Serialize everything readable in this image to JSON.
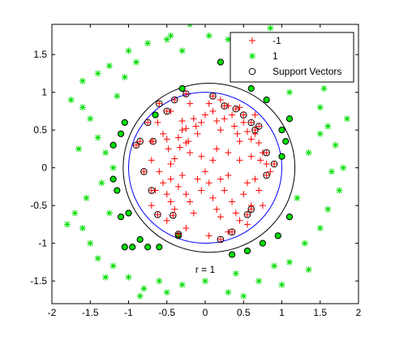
{
  "chart_data": {
    "type": "scatter",
    "title": "",
    "xlabel": "",
    "ylabel": "",
    "xlim": [
      -2,
      2.0
    ],
    "ylim": [
      -1.8,
      1.9
    ],
    "xticks": [
      "-2",
      "-1.5",
      "-1",
      "-0.5",
      "0",
      "0.5",
      "1",
      "1.5",
      "2"
    ],
    "xtick_values": [
      -2,
      -1.5,
      -1,
      -0.5,
      0,
      0.5,
      1,
      1.5,
      2
    ],
    "yticks": [
      "-1.5",
      "-1",
      "-0.5",
      "0",
      "0.5",
      "1",
      "1.5"
    ],
    "ytick_values": [
      -1.5,
      -1,
      -0.5,
      0,
      0.5,
      1,
      1.5
    ],
    "grid": false,
    "legend_position": "top-right",
    "legend": [
      "-1",
      "1",
      "Support Vectors"
    ],
    "annotation": "r = 1",
    "annotation_pos": [
      0.0,
      -1.35
    ],
    "colors": {
      "neg": "#ff0000",
      "pos": "#00dd00",
      "sv": "#000000",
      "circle": "#0000ff",
      "ellipse": "#000000"
    },
    "circle": {
      "center": [
        0,
        0
      ],
      "radius": 1.0
    },
    "boundary": {
      "cx": 0.05,
      "cy": 0.0,
      "rx": 1.12,
      "ry": 1.12
    },
    "series": [
      {
        "name": "-1",
        "marker": "plus",
        "points": [
          [
            -0.55,
            0.45
          ],
          [
            -0.5,
            0.38
          ],
          [
            -0.48,
            0.25
          ],
          [
            -0.45,
            0.05
          ],
          [
            -0.3,
            0.62
          ],
          [
            -0.3,
            0.5
          ],
          [
            -0.35,
            0.4
          ],
          [
            -0.33,
            0.27
          ],
          [
            -0.25,
            0.52
          ],
          [
            -0.2,
            0.2
          ],
          [
            -0.15,
            0.65
          ],
          [
            -0.12,
            0.55
          ],
          [
            -0.1,
            0.45
          ],
          [
            -0.05,
            0.6
          ],
          [
            0.0,
            0.7
          ],
          [
            0.05,
            0.85
          ],
          [
            0.1,
            0.75
          ],
          [
            0.15,
            0.62
          ],
          [
            0.2,
            0.5
          ],
          [
            0.25,
            0.65
          ],
          [
            0.3,
            0.82
          ],
          [
            0.35,
            0.7
          ],
          [
            0.38,
            0.55
          ],
          [
            0.42,
            0.45
          ],
          [
            0.45,
            0.35
          ],
          [
            0.5,
            0.6
          ],
          [
            0.55,
            0.48
          ],
          [
            0.6,
            0.38
          ],
          [
            0.65,
            0.45
          ],
          [
            0.7,
            0.33
          ],
          [
            0.75,
            0.2
          ],
          [
            0.72,
            0.1
          ],
          [
            0.8,
            0.05
          ],
          [
            -0.6,
            -0.05
          ],
          [
            -0.55,
            -0.2
          ],
          [
            -0.5,
            -0.35
          ],
          [
            -0.45,
            -0.45
          ],
          [
            -0.4,
            -0.55
          ],
          [
            -0.35,
            -0.25
          ],
          [
            -0.3,
            -0.1
          ],
          [
            -0.25,
            -0.35
          ],
          [
            -0.2,
            -0.45
          ],
          [
            -0.15,
            -0.6
          ],
          [
            -0.1,
            -0.15
          ],
          [
            -0.05,
            -0.3
          ],
          [
            0.0,
            -0.05
          ],
          [
            0.05,
            -0.2
          ],
          [
            0.1,
            -0.4
          ],
          [
            0.15,
            -0.55
          ],
          [
            0.2,
            -0.65
          ],
          [
            0.25,
            -0.3
          ],
          [
            0.3,
            -0.1
          ],
          [
            0.35,
            -0.45
          ],
          [
            0.4,
            -0.6
          ],
          [
            0.45,
            -0.7
          ],
          [
            0.5,
            -0.35
          ],
          [
            0.55,
            -0.2
          ],
          [
            0.6,
            -0.5
          ],
          [
            0.65,
            -0.15
          ],
          [
            0.7,
            -0.3
          ],
          [
            -0.25,
            0.33
          ],
          [
            -0.22,
            0.35
          ],
          [
            0.1,
            0.1
          ],
          [
            0.15,
            0.25
          ],
          [
            -0.05,
            0.15
          ],
          [
            0.3,
            0.2
          ],
          [
            0.45,
            0.1
          ],
          [
            -0.4,
            0.12
          ],
          [
            -0.7,
            0.1
          ],
          [
            -0.65,
            -0.3
          ],
          [
            -0.7,
            0.35
          ],
          [
            -0.62,
            0.6
          ],
          [
            -0.45,
            0.75
          ],
          [
            -0.2,
            0.85
          ],
          [
            0.2,
            0.9
          ],
          [
            0.45,
            0.8
          ],
          [
            0.65,
            0.7
          ],
          [
            0.85,
            -0.05
          ],
          [
            0.75,
            -0.5
          ],
          [
            0.55,
            -0.75
          ],
          [
            0.3,
            -0.85
          ],
          [
            0.05,
            -0.9
          ],
          [
            -0.25,
            -0.8
          ],
          [
            -0.5,
            -0.7
          ],
          [
            -0.7,
            -0.5
          ],
          [
            0.2,
            -0.15
          ],
          [
            -0.45,
            -0.15
          ],
          [
            0.6,
            0.15
          ]
        ]
      },
      {
        "name": "1",
        "marker": "star",
        "points": [
          [
            -1.75,
            0.9
          ],
          [
            -1.6,
            0.8
          ],
          [
            -1.5,
            0.65
          ],
          [
            -1.4,
            0.4
          ],
          [
            -1.3,
            0.2
          ],
          [
            -1.2,
            0.0
          ],
          [
            -1.35,
            -0.2
          ],
          [
            -1.55,
            -0.4
          ],
          [
            -1.7,
            -0.6
          ],
          [
            -1.6,
            -0.8
          ],
          [
            -1.5,
            -1.0
          ],
          [
            -1.4,
            -1.2
          ],
          [
            -1.2,
            -1.3
          ],
          [
            -1.0,
            -1.45
          ],
          [
            -0.8,
            -1.6
          ],
          [
            -0.5,
            -1.65
          ],
          [
            -0.3,
            -1.55
          ],
          [
            0.0,
            -1.5
          ],
          [
            0.3,
            -1.65
          ],
          [
            0.5,
            -1.7
          ],
          [
            0.7,
            -1.5
          ],
          [
            0.9,
            -1.3
          ],
          [
            1.1,
            -1.25
          ],
          [
            1.3,
            -1.0
          ],
          [
            1.5,
            -0.8
          ],
          [
            1.6,
            -0.55
          ],
          [
            1.75,
            -0.3
          ],
          [
            1.8,
            0.0
          ],
          [
            1.7,
            0.3
          ],
          [
            1.6,
            0.55
          ],
          [
            1.5,
            0.8
          ],
          [
            1.55,
            1.05
          ],
          [
            1.4,
            1.2
          ],
          [
            1.2,
            1.35
          ],
          [
            1.0,
            1.5
          ],
          [
            0.8,
            1.65
          ],
          [
            0.55,
            1.75
          ],
          [
            0.3,
            1.7
          ],
          [
            0.05,
            1.75
          ],
          [
            -0.2,
            1.9
          ],
          [
            -0.5,
            1.7
          ],
          [
            -0.75,
            1.65
          ],
          [
            -1.0,
            1.55
          ],
          [
            -1.25,
            1.35
          ],
          [
            -1.4,
            1.25
          ],
          [
            -1.6,
            1.15
          ],
          [
            -1.05,
            1.2
          ],
          [
            -0.9,
            1.4
          ],
          [
            -0.45,
            1.75
          ],
          [
            0.85,
            1.85
          ],
          [
            1.35,
            0.2
          ],
          [
            1.5,
            0.45
          ],
          [
            1.65,
            -0.05
          ],
          [
            -1.65,
            0.25
          ],
          [
            -1.8,
            -0.75
          ],
          [
            -1.25,
            -0.6
          ],
          [
            -1.3,
            -1.45
          ],
          [
            1.2,
            -0.4
          ],
          [
            1.35,
            -1.35
          ],
          [
            0.4,
            -1.4
          ],
          [
            -0.85,
            -1.7
          ],
          [
            1.85,
            0.65
          ],
          [
            -0.3,
            1.55
          ],
          [
            0.6,
            1.5
          ],
          [
            1.1,
            1.0
          ],
          [
            -1.15,
            0.95
          ],
          [
            1.0,
            -1.55
          ],
          [
            -0.6,
            -1.5
          ]
        ]
      }
    ],
    "support_vectors": {
      "neg": [
        [
          -0.85,
          0.35
        ],
        [
          -0.8,
          -0.05
        ],
        [
          -0.7,
          -0.3
        ],
        [
          -0.6,
          0.85
        ],
        [
          -0.5,
          0.75
        ],
        [
          -0.4,
          0.9
        ],
        [
          -0.25,
          0.98
        ],
        [
          0.1,
          0.95
        ],
        [
          0.25,
          0.82
        ],
        [
          0.4,
          0.78
        ],
        [
          0.5,
          0.7
        ],
        [
          0.6,
          0.6
        ],
        [
          0.7,
          0.55
        ],
        [
          0.8,
          0.2
        ],
        [
          0.9,
          0.05
        ],
        [
          -0.62,
          -0.62
        ],
        [
          -0.35,
          -0.88
        ],
        [
          0.2,
          -0.95
        ],
        [
          0.35,
          -0.85
        ],
        [
          0.55,
          -0.62
        ],
        [
          0.6,
          -0.55
        ],
        [
          -0.75,
          0.6
        ],
        [
          -0.9,
          0.3
        ],
        [
          -0.68,
          0.35
        ],
        [
          -0.42,
          -0.63
        ],
        [
          0.8,
          -0.1
        ],
        [
          0.65,
          0.5
        ]
      ],
      "pos": [
        [
          -1.05,
          0.6
        ],
        [
          -1.1,
          0.45
        ],
        [
          -1.2,
          0.3
        ],
        [
          -1.2,
          -0.15
        ],
        [
          -1.15,
          -0.3
        ],
        [
          -1.1,
          -0.65
        ],
        [
          -1.0,
          -0.6
        ],
        [
          -1.05,
          -1.05
        ],
        [
          -0.95,
          -1.05
        ],
        [
          -0.75,
          -1.05
        ],
        [
          -0.6,
          -1.05
        ],
        [
          -0.35,
          -0.9
        ],
        [
          0.35,
          -1.15
        ],
        [
          0.55,
          -1.1
        ],
        [
          0.75,
          -1.0
        ],
        [
          0.95,
          -0.9
        ],
        [
          1.1,
          -0.65
        ],
        [
          1.05,
          0.35
        ],
        [
          1.0,
          0.5
        ],
        [
          1.1,
          0.65
        ],
        [
          0.8,
          0.9
        ],
        [
          0.6,
          1.05
        ],
        [
          0.2,
          1.4
        ],
        [
          -0.3,
          1.05
        ],
        [
          1.0,
          0.15
        ],
        [
          -0.85,
          -0.95
        ],
        [
          -0.65,
          0.7
        ]
      ]
    }
  }
}
